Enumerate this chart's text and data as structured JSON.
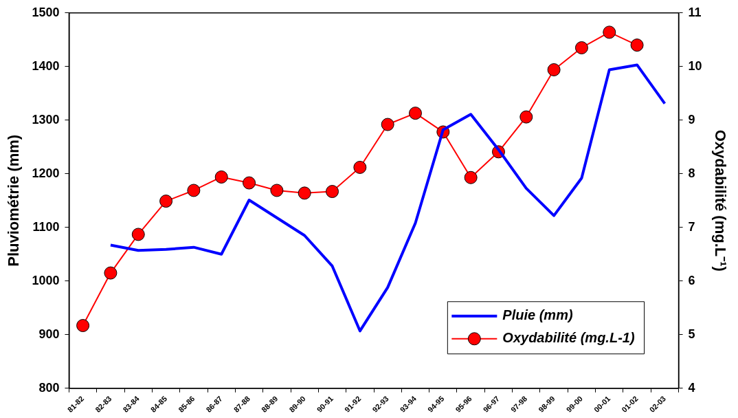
{
  "chart_data": {
    "type": "line",
    "categories": [
      "81-82",
      "82-83",
      "83-84",
      "84-85",
      "85-86",
      "86-87",
      "87-88",
      "88-89",
      "89-90",
      "90-91",
      "91-92",
      "92-93",
      "93-94",
      "94-95",
      "95-96",
      "96-97",
      "97-98",
      "98-99",
      "99-00",
      "00-01",
      "01-02",
      "02-03"
    ],
    "series": [
      {
        "name": "Pluie (mm)",
        "color": "#0000ff",
        "marker": "none",
        "values": [
          null,
          1067,
          1057,
          1059,
          1063,
          1050,
          1151,
          1118,
          1085,
          1028,
          907,
          988,
          1108,
          1282,
          1311,
          1245,
          1173,
          1122,
          1192,
          1394,
          1403,
          1331
        ]
      },
      {
        "name": "Oxydabilité (mg.L-1)",
        "color": "#ff0000",
        "marker": "circle",
        "axis": "y2",
        "values": [
          5.17,
          6.15,
          6.87,
          7.49,
          7.69,
          7.94,
          7.83,
          7.69,
          7.64,
          7.67,
          8.12,
          8.92,
          9.13,
          8.78,
          7.93,
          8.41,
          9.06,
          9.94,
          10.35,
          10.64,
          10.4,
          null
        ]
      }
    ],
    "ylabel": "Pluviométrie (mm)",
    "y2label": "Oxydabilité (mg.L⁻¹)",
    "ylim": [
      800,
      1500
    ],
    "yticks": [
      800,
      900,
      1000,
      1100,
      1200,
      1300,
      1400,
      1500
    ],
    "y2lim": [
      4,
      11
    ],
    "y2ticks": [
      4,
      5,
      6,
      7,
      8,
      9,
      10,
      11
    ],
    "grid": false,
    "legend": "bottom right"
  }
}
